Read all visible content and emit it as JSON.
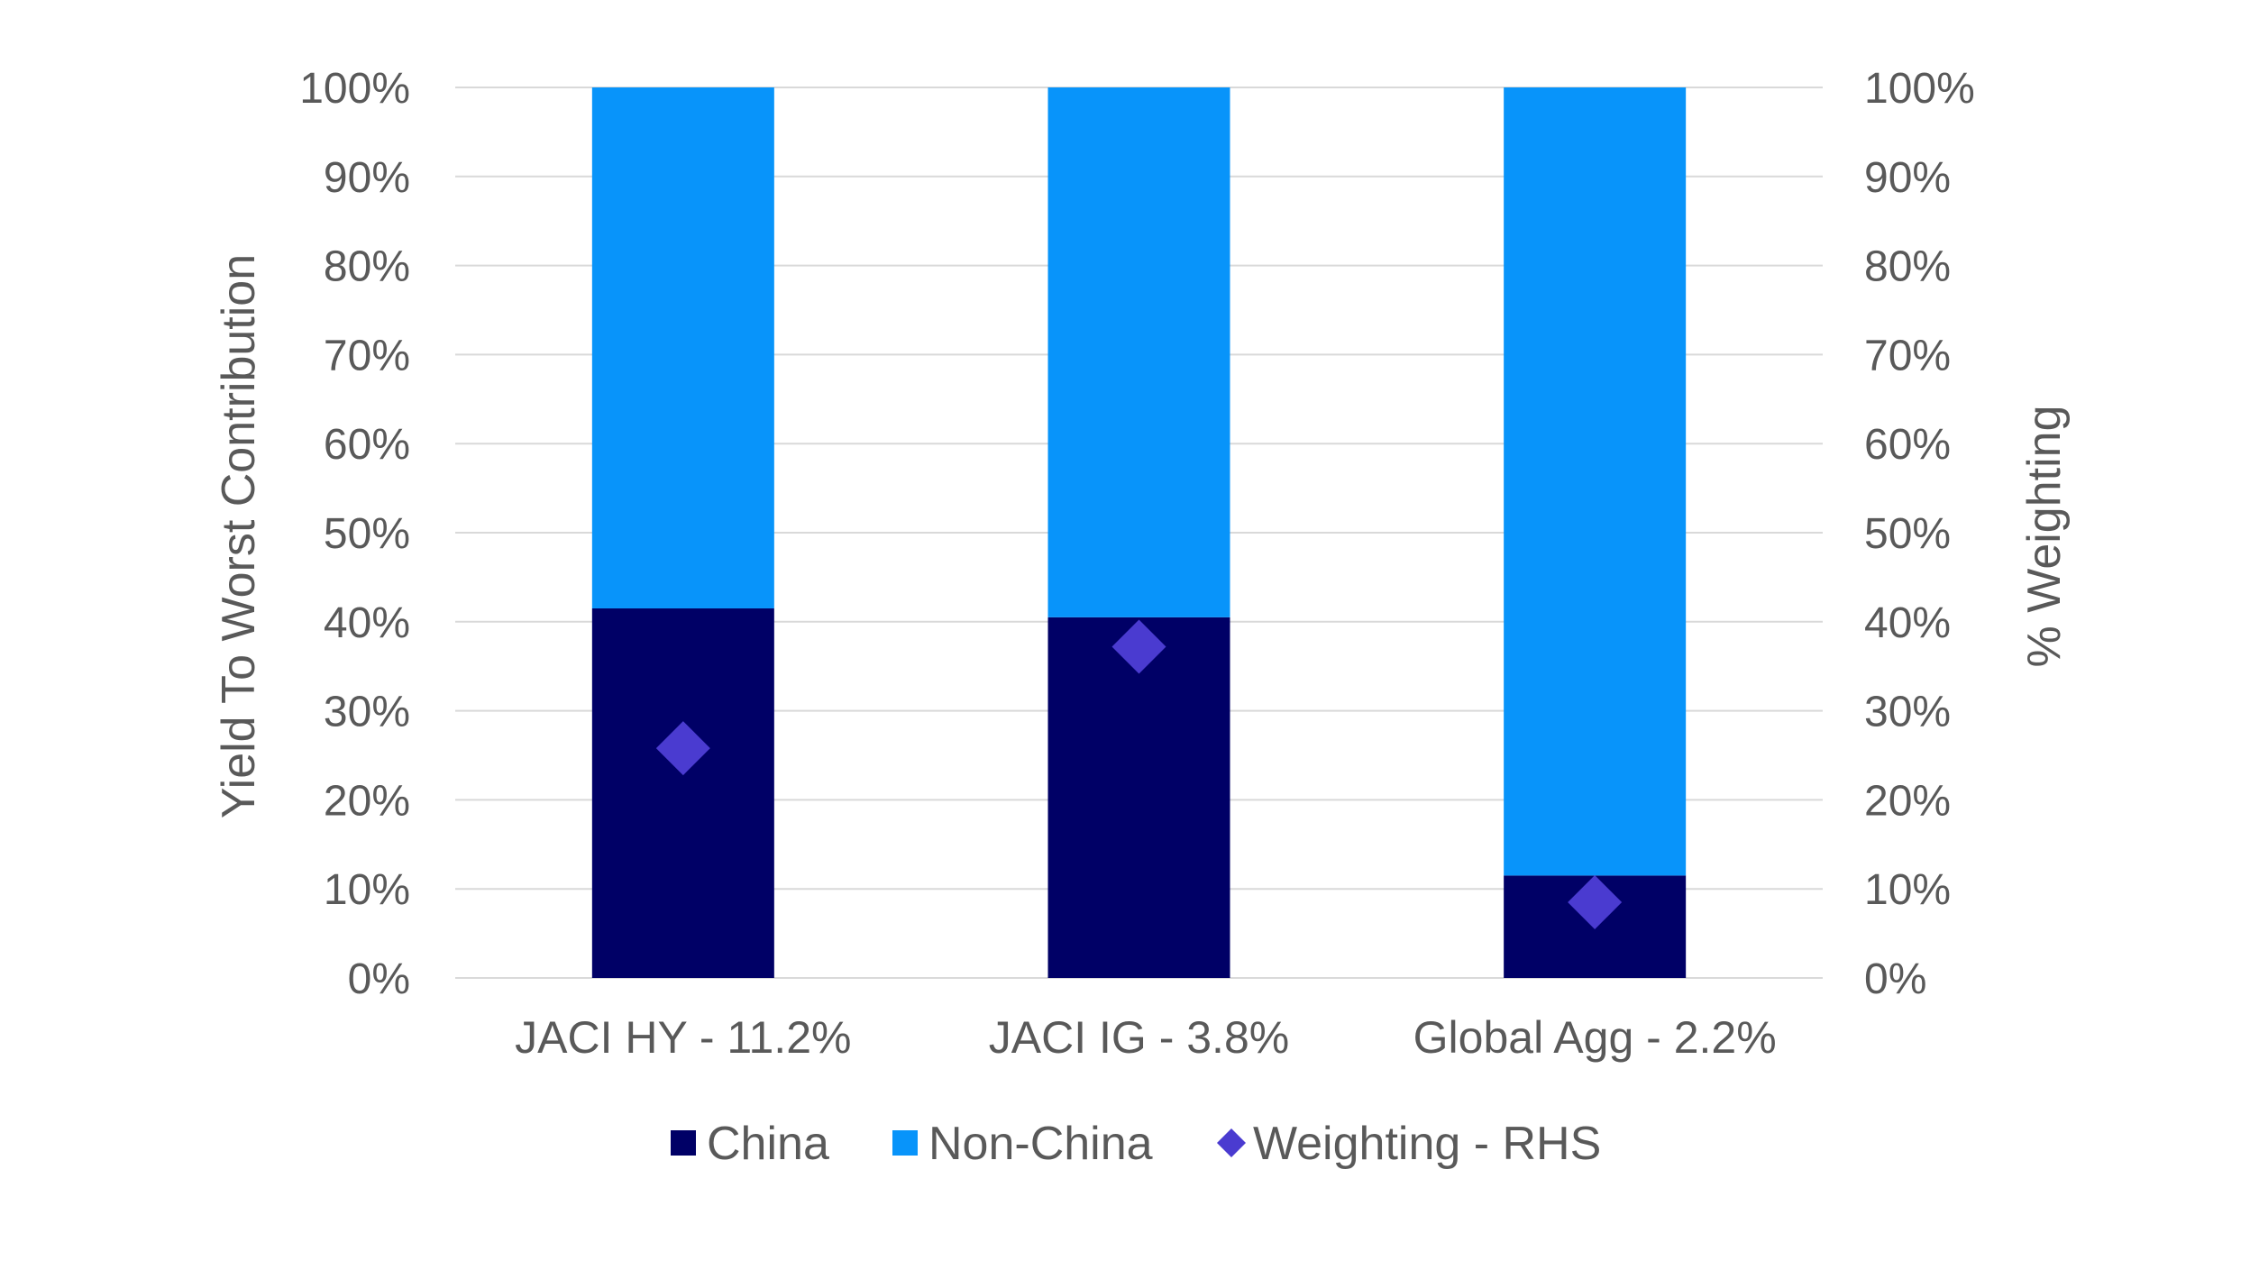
{
  "chart_data": {
    "type": "bar",
    "stacked": true,
    "categories": [
      "JACI HY - 11.2%",
      "JACI IG - 3.8%",
      "Global Agg - 2.2%"
    ],
    "series": [
      {
        "name": "China",
        "kind": "bar",
        "color": "#000066",
        "values": [
          41.5,
          40.5,
          11.5
        ]
      },
      {
        "name": "Non-China",
        "kind": "bar",
        "color": "#0894FA",
        "values": [
          58.5,
          59.5,
          88.5
        ]
      },
      {
        "name": "Weighting - RHS",
        "kind": "scatter",
        "marker": "diamond",
        "color": "#4A3BD0",
        "values": [
          25.8,
          37.2,
          8.5
        ]
      }
    ],
    "ylabel": "Yield To Worst Contribution",
    "y2label": "% Weighting",
    "ylim": [
      0,
      100
    ],
    "y2lim": [
      0,
      100
    ],
    "yticks": [
      "0%",
      "10%",
      "20%",
      "30%",
      "40%",
      "50%",
      "60%",
      "70%",
      "80%",
      "90%",
      "100%"
    ],
    "y2ticks": [
      "0%",
      "10%",
      "20%",
      "30%",
      "40%",
      "50%",
      "60%",
      "70%",
      "80%",
      "90%",
      "100%"
    ],
    "grid": true,
    "legend_position": "bottom",
    "gridline_color": "#D9D9D9"
  }
}
